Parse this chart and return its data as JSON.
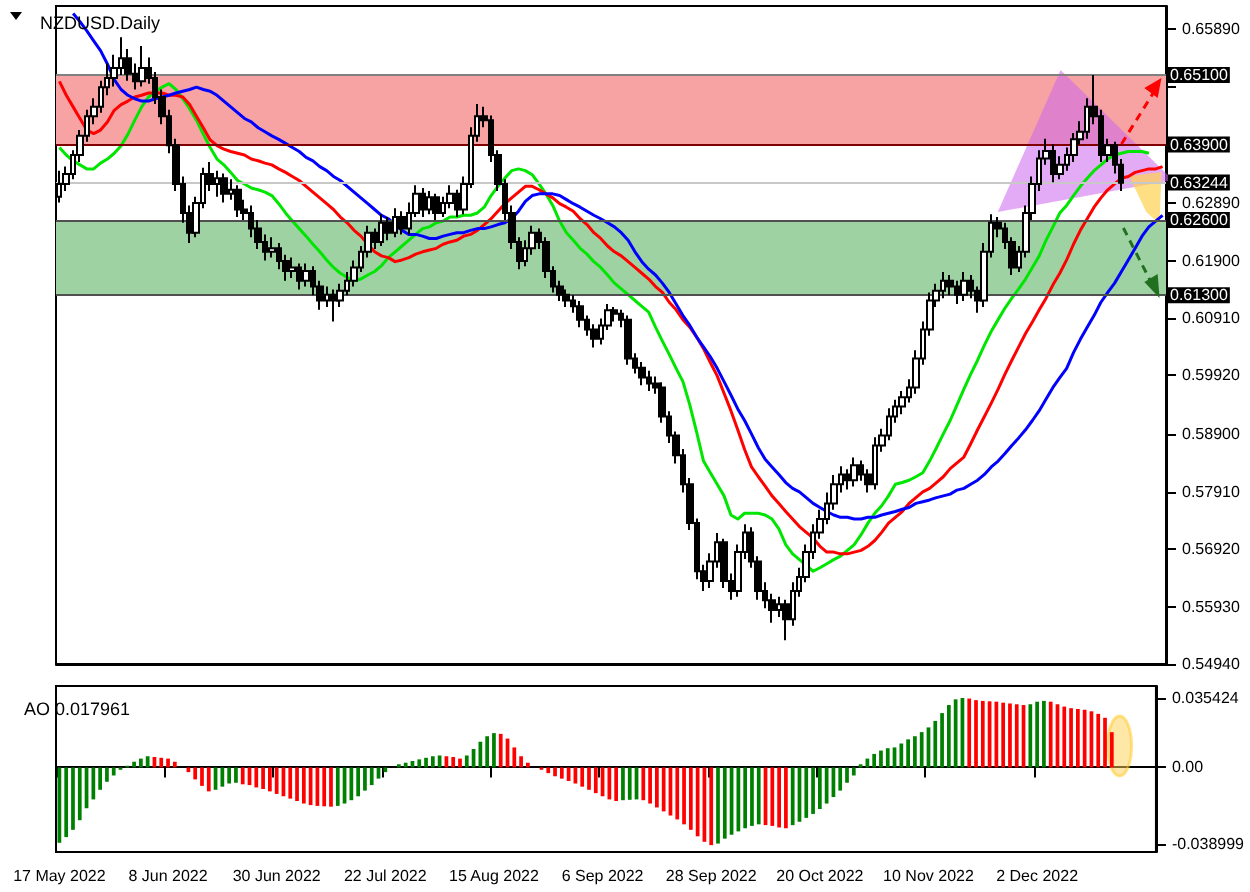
{
  "chart_data": [
    {
      "type": "candlestick",
      "title": "NZDUSD.Daily",
      "marker": "none",
      "tick_labels": "y",
      "categories": [
        null,
        null,
        null,
        null,
        null,
        null,
        null,
        null,
        null,
        null,
        null,
        null,
        null,
        null,
        null,
        null,
        null,
        null,
        null,
        null,
        null,
        null,
        null,
        null,
        null,
        null,
        null,
        null,
        null,
        null,
        null,
        null,
        null,
        null,
        null,
        null,
        null,
        null,
        null,
        null,
        null,
        null,
        null,
        null,
        null,
        null,
        null,
        null,
        null,
        null,
        null,
        null,
        null,
        null,
        null,
        null,
        null,
        null,
        null,
        null,
        null,
        null,
        null,
        null,
        null,
        null,
        null,
        null,
        null,
        null,
        null,
        null,
        null,
        null,
        null,
        null,
        null,
        null,
        null,
        null,
        null,
        null,
        null,
        null,
        null,
        null,
        null,
        null,
        null,
        null,
        null,
        null,
        null,
        null,
        null,
        null,
        null,
        null,
        null,
        null,
        null,
        null,
        null,
        null,
        null,
        null,
        null,
        null,
        null,
        null,
        null,
        null,
        null,
        null,
        null,
        null,
        null,
        null,
        null,
        null,
        null,
        null,
        null,
        null,
        null,
        null,
        null,
        null,
        null,
        null,
        null,
        null,
        null,
        null,
        null,
        null,
        null,
        null,
        null,
        null,
        null,
        null,
        null,
        null,
        null,
        null,
        null,
        null,
        null,
        null,
        null,
        null,
        null,
        null,
        null,
        null,
        null,
        null,
        null,
        null,
        null,
        null
      ],
      "ohlc": [
        [
          0.63,
          0.6345,
          0.629,
          0.6322
        ],
        [
          0.6322,
          0.6352,
          0.631,
          0.6339
        ],
        [
          0.6339,
          0.638,
          0.633,
          0.6372
        ],
        [
          0.6372,
          0.6415,
          0.636,
          0.6405
        ],
        [
          0.6405,
          0.645,
          0.6395,
          0.6439
        ],
        [
          0.6439,
          0.647,
          0.6425,
          0.6455
        ],
        [
          0.6455,
          0.65,
          0.6445,
          0.6489
        ],
        [
          0.6489,
          0.653,
          0.6475,
          0.6505
        ],
        [
          0.6505,
          0.6545,
          0.649,
          0.6522
        ],
        [
          0.6522,
          0.6575,
          0.651,
          0.6539
        ],
        [
          0.6539,
          0.6555,
          0.65,
          0.6512
        ],
        [
          0.6512,
          0.653,
          0.6485,
          0.6499
        ],
        [
          0.6499,
          0.656,
          0.649,
          0.6522
        ],
        [
          0.6522,
          0.654,
          0.6495,
          0.6505
        ],
        [
          0.6505,
          0.6515,
          0.646,
          0.6472
        ],
        [
          0.6472,
          0.6485,
          0.6425,
          0.6439
        ],
        [
          0.6439,
          0.645,
          0.6375,
          0.6389
        ],
        [
          0.6389,
          0.64,
          0.631,
          0.6322
        ],
        [
          0.6322,
          0.6335,
          0.6255,
          0.6272
        ],
        [
          0.6272,
          0.6285,
          0.622,
          0.6238
        ],
        [
          0.6238,
          0.63,
          0.623,
          0.6289
        ],
        [
          0.6289,
          0.635,
          0.628,
          0.6339
        ],
        [
          0.6339,
          0.636,
          0.631,
          0.6322
        ],
        [
          0.6322,
          0.6345,
          0.63,
          0.6332
        ],
        [
          0.6332,
          0.634,
          0.629,
          0.6305
        ],
        [
          0.6305,
          0.633,
          0.6295,
          0.6312
        ],
        [
          0.6312,
          0.632,
          0.6265,
          0.6278
        ],
        [
          0.6278,
          0.6295,
          0.626,
          0.6272
        ],
        [
          0.6272,
          0.6285,
          0.623,
          0.6245
        ],
        [
          0.6245,
          0.626,
          0.621,
          0.6222
        ],
        [
          0.6222,
          0.6235,
          0.619,
          0.6205
        ],
        [
          0.6205,
          0.623,
          0.6195,
          0.6211
        ],
        [
          0.6211,
          0.622,
          0.6175,
          0.6189
        ],
        [
          0.6189,
          0.62,
          0.6155,
          0.6172
        ],
        [
          0.6172,
          0.6195,
          0.616,
          0.6178
        ],
        [
          0.6178,
          0.6185,
          0.614,
          0.6155
        ],
        [
          0.6155,
          0.6185,
          0.6145,
          0.6172
        ],
        [
          0.6172,
          0.618,
          0.613,
          0.6145
        ],
        [
          0.6145,
          0.6155,
          0.6105,
          0.6121
        ],
        [
          0.6121,
          0.6145,
          0.611,
          0.6131
        ],
        [
          0.6131,
          0.614,
          0.6085,
          0.6121
        ],
        [
          0.6121,
          0.615,
          0.611,
          0.6138
        ],
        [
          0.6138,
          0.617,
          0.613,
          0.6155
        ],
        [
          0.6155,
          0.619,
          0.6145,
          0.6178
        ],
        [
          0.6178,
          0.6215,
          0.617,
          0.6205
        ],
        [
          0.6205,
          0.625,
          0.6195,
          0.6238
        ],
        [
          0.6238,
          0.6245,
          0.621,
          0.6222
        ],
        [
          0.6222,
          0.627,
          0.6215,
          0.6255
        ],
        [
          0.6255,
          0.6265,
          0.6225,
          0.6238
        ],
        [
          0.6238,
          0.628,
          0.623,
          0.6265
        ],
        [
          0.6265,
          0.6275,
          0.6235,
          0.6245
        ],
        [
          0.6245,
          0.629,
          0.6235,
          0.6272
        ],
        [
          0.6272,
          0.632,
          0.6265,
          0.6305
        ],
        [
          0.6305,
          0.6315,
          0.6265,
          0.6278
        ],
        [
          0.6278,
          0.631,
          0.627,
          0.6299
        ],
        [
          0.6299,
          0.6305,
          0.626,
          0.6272
        ],
        [
          0.6272,
          0.63,
          0.6265,
          0.6289
        ],
        [
          0.6289,
          0.632,
          0.628,
          0.6305
        ],
        [
          0.6305,
          0.6312,
          0.6265,
          0.6278
        ],
        [
          0.6278,
          0.6335,
          0.627,
          0.6322
        ],
        [
          0.6322,
          0.642,
          0.6315,
          0.6405
        ],
        [
          0.6405,
          0.646,
          0.6395,
          0.6439
        ],
        [
          0.6439,
          0.6455,
          0.642,
          0.6432
        ],
        [
          0.6432,
          0.644,
          0.636,
          0.6372
        ],
        [
          0.6372,
          0.638,
          0.631,
          0.6322
        ],
        [
          0.6322,
          0.633,
          0.626,
          0.6272
        ],
        [
          0.6272,
          0.6285,
          0.621,
          0.6222
        ],
        [
          0.6222,
          0.623,
          0.6175,
          0.6189
        ],
        [
          0.6189,
          0.6225,
          0.618,
          0.6211
        ],
        [
          0.6211,
          0.625,
          0.62,
          0.6238
        ],
        [
          0.6238,
          0.6245,
          0.621,
          0.6222
        ],
        [
          0.6222,
          0.623,
          0.616,
          0.6172
        ],
        [
          0.6172,
          0.618,
          0.6135,
          0.6145
        ],
        [
          0.6145,
          0.6155,
          0.612,
          0.6131
        ],
        [
          0.6131,
          0.614,
          0.611,
          0.6121
        ],
        [
          0.6121,
          0.613,
          0.61,
          0.6111
        ],
        [
          0.6111,
          0.612,
          0.6075,
          0.6088
        ],
        [
          0.6088,
          0.6095,
          0.606,
          0.6071
        ],
        [
          0.6071,
          0.608,
          0.604,
          0.6055
        ],
        [
          0.6055,
          0.609,
          0.6045,
          0.6078
        ],
        [
          0.6078,
          0.6115,
          0.607,
          0.6104
        ],
        [
          0.6104,
          0.611,
          0.6085,
          0.6098
        ],
        [
          0.6098,
          0.6105,
          0.6075,
          0.6088
        ],
        [
          0.6088,
          0.6095,
          0.601,
          0.6021
        ],
        [
          0.6021,
          0.603,
          0.5995,
          0.6005
        ],
        [
          0.6005,
          0.6015,
          0.5975,
          0.5988
        ],
        [
          0.5988,
          0.6,
          0.5965,
          0.5978
        ],
        [
          0.5978,
          0.599,
          0.596,
          0.5971
        ],
        [
          0.5971,
          0.598,
          0.591,
          0.5921
        ],
        [
          0.5921,
          0.593,
          0.5875,
          0.5888
        ],
        [
          0.5888,
          0.5895,
          0.584,
          0.5854
        ],
        [
          0.5854,
          0.5865,
          0.579,
          0.5804
        ],
        [
          0.5804,
          0.5815,
          0.5725,
          0.5737
        ],
        [
          0.5737,
          0.5745,
          0.564,
          0.5654
        ],
        [
          0.5654,
          0.5665,
          0.562,
          0.5637
        ],
        [
          0.5637,
          0.5685,
          0.5625,
          0.5671
        ],
        [
          0.5671,
          0.572,
          0.566,
          0.5704
        ],
        [
          0.5704,
          0.571,
          0.5625,
          0.5637
        ],
        [
          0.5637,
          0.565,
          0.5605,
          0.562
        ],
        [
          0.562,
          0.57,
          0.561,
          0.5687
        ],
        [
          0.5687,
          0.5735,
          0.5675,
          0.5721
        ],
        [
          0.5721,
          0.573,
          0.566,
          0.5671
        ],
        [
          0.5671,
          0.568,
          0.5605,
          0.562
        ],
        [
          0.562,
          0.5635,
          0.559,
          0.5604
        ],
        [
          0.5604,
          0.5615,
          0.5565,
          0.5587
        ],
        [
          0.5587,
          0.561,
          0.5575,
          0.5597
        ],
        [
          0.5597,
          0.5605,
          0.5535,
          0.5571
        ],
        [
          0.5571,
          0.5635,
          0.556,
          0.562
        ],
        [
          0.562,
          0.566,
          0.561,
          0.5644
        ],
        [
          0.5644,
          0.57,
          0.5635,
          0.5687
        ],
        [
          0.5687,
          0.5735,
          0.5675,
          0.5721
        ],
        [
          0.5721,
          0.576,
          0.571,
          0.5744
        ],
        [
          0.5744,
          0.579,
          0.5735,
          0.5771
        ],
        [
          0.5771,
          0.582,
          0.576,
          0.5804
        ],
        [
          0.5804,
          0.5835,
          0.579,
          0.5821
        ],
        [
          0.5821,
          0.583,
          0.5795,
          0.5811
        ],
        [
          0.5811,
          0.585,
          0.58,
          0.5837
        ],
        [
          0.5837,
          0.5845,
          0.581,
          0.5821
        ],
        [
          0.5821,
          0.583,
          0.579,
          0.5804
        ],
        [
          0.5804,
          0.5885,
          0.5795,
          0.5871
        ],
        [
          0.5871,
          0.59,
          0.586,
          0.5888
        ],
        [
          0.5888,
          0.5935,
          0.588,
          0.5921
        ],
        [
          0.5921,
          0.595,
          0.591,
          0.5938
        ],
        [
          0.5938,
          0.5965,
          0.5925,
          0.5954
        ],
        [
          0.5954,
          0.5985,
          0.5945,
          0.5971
        ],
        [
          0.5971,
          0.6035,
          0.596,
          0.6021
        ],
        [
          0.6021,
          0.6085,
          0.601,
          0.6071
        ],
        [
          0.6071,
          0.6135,
          0.606,
          0.6121
        ],
        [
          0.6121,
          0.615,
          0.611,
          0.6138
        ],
        [
          0.6138,
          0.617,
          0.6125,
          0.6155
        ],
        [
          0.6155,
          0.6165,
          0.613,
          0.6145
        ],
        [
          0.6145,
          0.6155,
          0.6115,
          0.6131
        ],
        [
          0.6131,
          0.617,
          0.612,
          0.6155
        ],
        [
          0.6155,
          0.6165,
          0.6125,
          0.6138
        ],
        [
          0.6138,
          0.6145,
          0.61,
          0.6121
        ],
        [
          0.6121,
          0.622,
          0.611,
          0.6205
        ],
        [
          0.6205,
          0.627,
          0.6195,
          0.6255
        ],
        [
          0.6255,
          0.6265,
          0.623,
          0.6245
        ],
        [
          0.6245,
          0.6255,
          0.621,
          0.6222
        ],
        [
          0.6222,
          0.623,
          0.6165,
          0.6178
        ],
        [
          0.6178,
          0.6215,
          0.617,
          0.6205
        ],
        [
          0.6205,
          0.6285,
          0.6195,
          0.6272
        ],
        [
          0.6272,
          0.6335,
          0.626,
          0.6322
        ],
        [
          0.6322,
          0.638,
          0.631,
          0.6366
        ],
        [
          0.6366,
          0.64,
          0.6355,
          0.6379
        ],
        [
          0.6379,
          0.639,
          0.6325,
          0.6339
        ],
        [
          0.6339,
          0.637,
          0.633,
          0.6355
        ],
        [
          0.6355,
          0.6385,
          0.6345,
          0.6372
        ],
        [
          0.6372,
          0.641,
          0.636,
          0.6399
        ],
        [
          0.6399,
          0.643,
          0.639,
          0.6412
        ],
        [
          0.6412,
          0.647,
          0.64,
          0.6455
        ],
        [
          0.6455,
          0.651,
          0.6425,
          0.6439
        ],
        [
          0.6439,
          0.645,
          0.636,
          0.6372
        ],
        [
          0.6372,
          0.64,
          0.636,
          0.6389
        ],
        [
          0.6389,
          0.6395,
          0.634,
          0.6355
        ],
        [
          0.6355,
          0.6365,
          0.631,
          0.6324
        ],
        null,
        null,
        null,
        null,
        null,
        null
      ],
      "ylim": [
        0.5494,
        0.6629
      ],
      "yticks": [
        {
          "value": 0.6589,
          "label": "0.65890"
        },
        {
          "value": 0.649,
          "label": null
        },
        {
          "value": 0.6289,
          "label": "0.62890"
        },
        {
          "value": 0.619,
          "label": "0.61900"
        },
        {
          "value": 0.6091,
          "label": "0.60910"
        },
        {
          "value": 0.5992,
          "label": "0.59920"
        },
        {
          "value": 0.589,
          "label": "0.58900"
        },
        {
          "value": 0.5791,
          "label": "0.57910"
        },
        {
          "value": 0.5692,
          "label": "0.56920"
        },
        {
          "value": 0.5593,
          "label": "0.55930"
        },
        {
          "value": 0.5494,
          "label": "0.54940"
        }
      ],
      "bands": [
        {
          "axis": "y",
          "from": 0.639,
          "to": 0.651,
          "color": "#f8a3a3"
        },
        {
          "axis": "y",
          "from": 0.613,
          "to": 0.626,
          "color": "#9fd2a3"
        }
      ],
      "ref_lines": [
        {
          "axis": "y",
          "value": 0.651,
          "label": "0.65100",
          "color": "#808080"
        },
        {
          "axis": "y",
          "value": 0.639,
          "label": "0.63900",
          "color": "#800000"
        },
        {
          "axis": "y",
          "value": 0.63244,
          "label": "0.63244",
          "color": "#c8c8c8"
        },
        {
          "axis": "y",
          "value": 0.626,
          "label": "0.62600",
          "color": "#505050"
        },
        {
          "axis": "y",
          "value": 0.613,
          "label": "0.61300",
          "color": "#505050"
        }
      ],
      "series": [
        {
          "type": "line",
          "color": "#00e600",
          "values": [
            0.6385,
            0.6372,
            0.6362,
            0.6355,
            0.6348,
            0.6348,
            0.6358,
            0.6365,
            0.6375,
            0.6388,
            0.6408,
            0.6432,
            0.6455,
            0.6472,
            0.6482,
            0.6489,
            0.6495,
            0.6485,
            0.6469,
            0.6452,
            0.6432,
            0.6408,
            0.6385,
            0.6365,
            0.6355,
            0.6342,
            0.6328,
            0.6322,
            0.6315,
            0.6312,
            0.6308,
            0.6302,
            0.6288,
            0.6272,
            0.6258,
            0.6245,
            0.6232,
            0.6218,
            0.6205,
            0.6191,
            0.6178,
            0.6168,
            0.6161,
            0.6155,
            0.6158,
            0.6165,
            0.6171,
            0.6181,
            0.6195,
            0.6205,
            0.6215,
            0.6225,
            0.6235,
            0.6245,
            0.6248,
            0.6255,
            0.6258,
            0.6265,
            0.6265,
            0.6268,
            0.6268,
            0.6272,
            0.6282,
            0.6302,
            0.6318,
            0.6332,
            0.6345,
            0.6348,
            0.6345,
            0.6338,
            0.6322,
            0.6305,
            0.6285,
            0.6258,
            0.6238,
            0.6225,
            0.6211,
            0.6201,
            0.6188,
            0.6178,
            0.6165,
            0.6151,
            0.6141,
            0.6131,
            0.6121,
            0.6111,
            0.6101,
            0.6075,
            0.6051,
            0.6028,
            0.6004,
            0.5981,
            0.5941,
            0.5894,
            0.5844,
            0.5824,
            0.5804,
            0.5784,
            0.5751,
            0.5744,
            0.5754,
            0.5754,
            0.5754,
            0.5751,
            0.5744,
            0.5727,
            0.57,
            0.5684,
            0.5674,
            0.5664,
            0.5654,
            0.566,
            0.5667,
            0.5674,
            0.568,
            0.569,
            0.57,
            0.5717,
            0.5737,
            0.5754,
            0.5767,
            0.5784,
            0.5804,
            0.5807,
            0.5811,
            0.5817,
            0.5824,
            0.5844,
            0.5867,
            0.5891,
            0.5914,
            0.5941,
            0.5968,
            0.5994,
            0.6018,
            0.6044,
            0.6068,
            0.6088,
            0.6108,
            0.6125,
            0.6141,
            0.6158,
            0.6178,
            0.6198,
            0.6225,
            0.6248,
            0.6272,
            0.6285,
            0.6302,
            0.6318,
            0.6332,
            0.6345,
            0.6355,
            0.6365,
            0.6372,
            0.6375,
            0.6378,
            0.6378,
            0.6378,
            0.6375,
            null,
            null
          ]
        },
        {
          "type": "line",
          "color": "#ff0000",
          "values": [
            0.6499,
            0.6475,
            0.6455,
            0.6435,
            0.6415,
            0.6409,
            0.6415,
            0.6429,
            0.6449,
            0.6459,
            0.6465,
            0.6472,
            0.6475,
            0.6479,
            0.6479,
            0.6479,
            0.6475,
            0.6475,
            0.6472,
            0.6459,
            0.6439,
            0.6419,
            0.6398,
            0.6388,
            0.6382,
            0.6378,
            0.6375,
            0.6372,
            0.6365,
            0.6362,
            0.6358,
            0.6355,
            0.6348,
            0.6342,
            0.6335,
            0.6328,
            0.6318,
            0.6308,
            0.6298,
            0.6288,
            0.6278,
            0.6265,
            0.6255,
            0.6242,
            0.6232,
            0.6218,
            0.6205,
            0.6198,
            0.6195,
            0.6188,
            0.6191,
            0.6195,
            0.6201,
            0.6205,
            0.6208,
            0.6211,
            0.6218,
            0.6222,
            0.6225,
            0.6232,
            0.6235,
            0.6242,
            0.6252,
            0.6262,
            0.6275,
            0.6288,
            0.6298,
            0.6308,
            0.6318,
            0.6318,
            0.6312,
            0.6305,
            0.6298,
            0.6288,
            0.6282,
            0.6275,
            0.6262,
            0.6252,
            0.6238,
            0.6228,
            0.6215,
            0.6205,
            0.6198,
            0.6188,
            0.6178,
            0.6168,
            0.6158,
            0.6145,
            0.6135,
            0.6118,
            0.6105,
            0.6088,
            0.6075,
            0.6058,
            0.6038,
            0.6014,
            0.5991,
            0.5961,
            0.5931,
            0.5898,
            0.5864,
            0.5834,
            0.5817,
            0.5801,
            0.5784,
            0.5771,
            0.5757,
            0.5744,
            0.5731,
            0.5721,
            0.5711,
            0.5697,
            0.5687,
            0.5687,
            0.5684,
            0.5684,
            0.5687,
            0.569,
            0.5697,
            0.5707,
            0.5721,
            0.5737,
            0.5747,
            0.5757,
            0.5771,
            0.5781,
            0.5791,
            0.5797,
            0.5807,
            0.5817,
            0.5831,
            0.5841,
            0.5851,
            0.5874,
            0.5898,
            0.5921,
            0.5944,
            0.5968,
            0.5994,
            0.6018,
            0.6041,
            0.6064,
            0.6084,
            0.6105,
            0.6125,
            0.6148,
            0.6168,
            0.6191,
            0.6218,
            0.6242,
            0.6262,
            0.6282,
            0.6298,
            0.6312,
            0.6322,
            0.6332,
            0.6335,
            0.6342,
            0.6345,
            0.6348,
            0.6348,
            0.6352
          ]
        },
        {
          "type": "line",
          "color": "#0000ff",
          "values": [
            null,
            null,
            0.6616,
            0.6602,
            0.6586,
            0.6569,
            0.6552,
            0.6529,
            0.6502,
            0.6485,
            0.6475,
            0.6469,
            0.6465,
            0.6465,
            0.6469,
            0.6472,
            0.6475,
            0.6479,
            0.6482,
            0.6485,
            0.6489,
            0.6485,
            0.6482,
            0.6475,
            0.6465,
            0.6455,
            0.6445,
            0.6435,
            0.6429,
            0.6419,
            0.6412,
            0.6405,
            0.6399,
            0.6392,
            0.6385,
            0.6378,
            0.6368,
            0.6362,
            0.6352,
            0.6345,
            0.6335,
            0.6328,
            0.6318,
            0.6308,
            0.6298,
            0.6288,
            0.6278,
            0.6268,
            0.6262,
            0.6252,
            0.6242,
            0.6235,
            0.6235,
            0.6232,
            0.6228,
            0.6228,
            0.6232,
            0.6235,
            0.6238,
            0.6238,
            0.6242,
            0.6245,
            0.6245,
            0.6248,
            0.6252,
            0.6255,
            0.6262,
            0.6275,
            0.6292,
            0.6302,
            0.6305,
            0.6305,
            0.6305,
            0.6302,
            0.6295,
            0.6288,
            0.6282,
            0.6275,
            0.6268,
            0.6262,
            0.6255,
            0.6248,
            0.6238,
            0.6225,
            0.6205,
            0.6188,
            0.6175,
            0.6165,
            0.6151,
            0.6135,
            0.6115,
            0.6095,
            0.6078,
            0.6058,
            0.6041,
            0.6024,
            0.6004,
            0.5981,
            0.5958,
            0.5934,
            0.5914,
            0.5891,
            0.5867,
            0.5847,
            0.5834,
            0.5821,
            0.5807,
            0.5797,
            0.5791,
            0.5781,
            0.5771,
            0.5764,
            0.5757,
            0.5751,
            0.5747,
            0.5747,
            0.5744,
            0.5744,
            0.5747,
            0.5747,
            0.5751,
            0.5754,
            0.5757,
            0.5761,
            0.5764,
            0.5771,
            0.5774,
            0.5777,
            0.5781,
            0.5784,
            0.5787,
            0.5794,
            0.5797,
            0.5804,
            0.5811,
            0.5821,
            0.5834,
            0.5844,
            0.5857,
            0.5871,
            0.5884,
            0.5898,
            0.5914,
            0.5931,
            0.5951,
            0.5971,
            0.5988,
            0.6004,
            0.6031,
            0.6054,
            0.6075,
            0.6095,
            0.6118,
            0.6135,
            0.6151,
            0.6171,
            0.6191,
            0.6211,
            0.6232,
            0.6248,
            0.6258,
            0.6268
          ]
        }
      ]
    },
    {
      "type": "bar",
      "title": "AO 0.017961",
      "categories": [
        "17 May 2022",
        null,
        null,
        null,
        null,
        null,
        null,
        null,
        null,
        null,
        null,
        null,
        null,
        null,
        null,
        null,
        "8 Jun 2022",
        null,
        null,
        null,
        null,
        null,
        null,
        null,
        null,
        null,
        null,
        null,
        null,
        null,
        null,
        null,
        "30 Jun 2022",
        null,
        null,
        null,
        null,
        null,
        null,
        null,
        null,
        null,
        null,
        null,
        null,
        null,
        null,
        null,
        "22 Jul 2022",
        null,
        null,
        null,
        null,
        null,
        null,
        null,
        null,
        null,
        null,
        null,
        null,
        null,
        null,
        null,
        "15 Aug 2022",
        null,
        null,
        null,
        null,
        null,
        null,
        null,
        null,
        null,
        null,
        null,
        null,
        null,
        null,
        null,
        "6 Sep 2022",
        null,
        null,
        null,
        null,
        null,
        null,
        null,
        null,
        null,
        null,
        null,
        null,
        null,
        null,
        null,
        "28 Sep 2022",
        null,
        null,
        null,
        null,
        null,
        null,
        null,
        null,
        null,
        null,
        null,
        null,
        null,
        null,
        null,
        "20 Oct 2022",
        null,
        null,
        null,
        null,
        null,
        null,
        null,
        null,
        null,
        null,
        null,
        null,
        null,
        null,
        null,
        "10 Nov 2022",
        null,
        null,
        null,
        null,
        null,
        null,
        null,
        null,
        null,
        null,
        null,
        null,
        null,
        null,
        null,
        "2 Dec 2022",
        null,
        null,
        null,
        null,
        null,
        null,
        null,
        null,
        null,
        null,
        null,
        null,
        null,
        null,
        null,
        null,
        null
      ],
      "values": [
        -0.0384,
        -0.0355,
        -0.0318,
        -0.0269,
        -0.0208,
        -0.0163,
        -0.0114,
        -0.0073,
        -0.0041,
        -0.0012,
        0.0008,
        0.0029,
        0.0045,
        0.0057,
        0.0053,
        0.0049,
        0.0045,
        0.0029,
        null,
        -0.0024,
        -0.0061,
        -0.0094,
        -0.0122,
        -0.0114,
        -0.0098,
        -0.0082,
        -0.0078,
        -0.0086,
        -0.009,
        -0.0102,
        -0.011,
        -0.0122,
        -0.0135,
        -0.0147,
        -0.0159,
        -0.0171,
        -0.0184,
        -0.0192,
        -0.0196,
        -0.0198,
        -0.02,
        -0.0196,
        -0.0184,
        -0.0167,
        -0.0147,
        -0.0118,
        -0.009,
        -0.0057,
        -0.0024,
        null,
        0.0016,
        0.0024,
        0.0033,
        0.0041,
        0.0049,
        0.0057,
        0.0061,
        0.0057,
        0.0053,
        0.0045,
        0.0061,
        0.0094,
        0.0131,
        0.0159,
        0.0175,
        0.0171,
        0.0147,
        0.0102,
        0.0057,
        0.0024,
        null,
        -0.0012,
        -0.0029,
        -0.0045,
        -0.0057,
        -0.0069,
        -0.0082,
        -0.0098,
        -0.0114,
        -0.0131,
        -0.0147,
        -0.0163,
        -0.0171,
        -0.0167,
        -0.0165,
        -0.0163,
        -0.0167,
        -0.0184,
        -0.0204,
        -0.0224,
        -0.0245,
        -0.0265,
        -0.029,
        -0.0318,
        -0.0351,
        -0.0379,
        -0.0396,
        -0.0388,
        -0.0363,
        -0.0343,
        -0.0326,
        -0.031,
        -0.0298,
        -0.029,
        -0.0294,
        -0.0298,
        -0.0306,
        -0.031,
        -0.0294,
        -0.0277,
        -0.0257,
        -0.0237,
        -0.0212,
        -0.0184,
        -0.0151,
        -0.0118,
        -0.0078,
        -0.0041,
        0.0016,
        0.0045,
        0.0069,
        0.0086,
        0.0098,
        0.0102,
        0.0122,
        0.0143,
        0.0159,
        0.018,
        0.0204,
        0.0237,
        0.0277,
        0.0318,
        0.0347,
        0.0354,
        0.0351,
        0.0343,
        0.0339,
        0.0337,
        0.0335,
        0.033,
        0.0326,
        0.0322,
        0.0318,
        0.0322,
        0.0335,
        0.0339,
        0.0335,
        0.0322,
        0.031,
        0.0302,
        0.0298,
        0.0294,
        0.0286,
        0.0273,
        0.0253,
        0.017961,
        null,
        null,
        null,
        null,
        null,
        null
      ],
      "colors": [
        "#008000",
        "#008000",
        "#008000",
        "#008000",
        "#008000",
        "#008000",
        "#008000",
        "#008000",
        "#008000",
        "#008000",
        "#008000",
        "#008000",
        "#008000",
        "#008000",
        "#ff0000",
        "#ff0000",
        "#ff0000",
        "#ff0000",
        "#ff0000",
        "#ff0000",
        "#ff0000",
        "#ff0000",
        "#ff0000",
        "#008000",
        "#008000",
        "#008000",
        "#008000",
        "#ff0000",
        "#ff0000",
        "#ff0000",
        "#ff0000",
        "#ff0000",
        "#ff0000",
        "#ff0000",
        "#ff0000",
        "#ff0000",
        "#ff0000",
        "#ff0000",
        "#ff0000",
        "#ff0000",
        "#ff0000",
        "#008000",
        "#008000",
        "#008000",
        "#008000",
        "#008000",
        "#008000",
        "#008000",
        "#008000",
        "#008000",
        "#008000",
        "#008000",
        "#008000",
        "#008000",
        "#008000",
        "#008000",
        "#008000",
        "#ff0000",
        "#ff0000",
        "#ff0000",
        "#008000",
        "#008000",
        "#008000",
        "#008000",
        "#008000",
        "#ff0000",
        "#ff0000",
        "#ff0000",
        "#ff0000",
        "#ff0000",
        "#ff0000",
        "#ff0000",
        "#ff0000",
        "#ff0000",
        "#ff0000",
        "#ff0000",
        "#ff0000",
        "#ff0000",
        "#ff0000",
        "#ff0000",
        "#ff0000",
        "#ff0000",
        "#ff0000",
        "#008000",
        "#008000",
        "#008000",
        "#ff0000",
        "#ff0000",
        "#ff0000",
        "#ff0000",
        "#ff0000",
        "#ff0000",
        "#ff0000",
        "#ff0000",
        "#ff0000",
        "#ff0000",
        "#ff0000",
        "#008000",
        "#008000",
        "#008000",
        "#008000",
        "#008000",
        "#008000",
        "#008000",
        "#ff0000",
        "#ff0000",
        "#ff0000",
        "#ff0000",
        "#008000",
        "#008000",
        "#008000",
        "#008000",
        "#008000",
        "#008000",
        "#008000",
        "#008000",
        "#008000",
        "#008000",
        "#008000",
        "#008000",
        "#008000",
        "#008000",
        "#008000",
        "#008000",
        "#008000",
        "#008000",
        "#008000",
        "#008000",
        "#008000",
        "#008000",
        "#008000",
        "#008000",
        "#008000",
        "#008000",
        "#ff0000",
        "#ff0000",
        "#ff0000",
        "#ff0000",
        "#ff0000",
        "#ff0000",
        "#ff0000",
        "#ff0000",
        "#ff0000",
        "#008000",
        "#008000",
        "#008000",
        "#ff0000",
        "#ff0000",
        "#ff0000",
        "#ff0000",
        "#ff0000",
        "#ff0000",
        "#ff0000",
        "#ff0000",
        "#ff0000",
        "#ff0000",
        null,
        null,
        null,
        null,
        null,
        null
      ],
      "ylim": [
        -0.0431,
        0.0415
      ],
      "yticks": [
        0.035424,
        {
          "value": 0,
          "label": "0.00"
        },
        -0.038999
      ]
    }
  ]
}
